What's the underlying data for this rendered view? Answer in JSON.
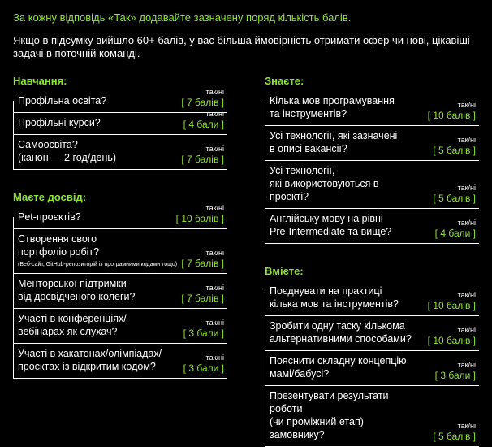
{
  "intro": {
    "line1": "За кожну відповідь «Так» додавайте зазначену поряд кількість балів.",
    "line2": "Якщо в підсумку вийшло 60+ балів, у вас більша ймовірність отримати офер чи нові, цікавіші задачі в поточній команді."
  },
  "yes_no": "так/ні",
  "left": {
    "education": {
      "title": "Навчання:",
      "items": [
        {
          "q": "Профільна освіта?",
          "pts": "[ 7 балів ]"
        },
        {
          "q": "Профільні курси?",
          "pts": "[ 4 бали ]"
        },
        {
          "q": "Самоосвіта?\n(канон — 2 год/день)",
          "pts": "[ 7 балів ]"
        }
      ]
    },
    "experience": {
      "title": "Маєте досвід:",
      "items": [
        {
          "q": "Pet-проєктів?",
          "pts": "[ 10 балів ]"
        },
        {
          "q": "Створення свого\nпортфоліо робіт?",
          "note": "(Веб-сайт, GitHub-репозиторій із програмними кодами тощо)",
          "pts": "[ 7 балів ]"
        },
        {
          "q": "Менторської підтримки\nвід досвідченого колеги?",
          "pts": "[ 7 балів ]"
        },
        {
          "q": "Участі в конференціях/\nвебінарах як слухач?",
          "pts": "[ 3 бали ]"
        },
        {
          "q": "Участі в хакатонах/олімпіадах/\nпроєктах із відкритим кодом?",
          "pts": "[ 3 бали ]"
        }
      ]
    }
  },
  "right": {
    "know": {
      "title": "Знаєте:",
      "items": [
        {
          "q": "Кілька мов програмування\nта інструментів?",
          "pts": "[ 10 балів ]"
        },
        {
          "q": "Усі технології, які зазначені\nв описі вакансії?",
          "pts": "[ 5 балів ]"
        },
        {
          "q": "Усі технології,\nякі використовуються в проєкті?",
          "pts": "[ 5 балів ]"
        },
        {
          "q": "Англійську мову на рівні\nPre-Intermediate та вище?",
          "pts": "[ 4 бали ]"
        }
      ]
    },
    "can": {
      "title": "Вмієте:",
      "items": [
        {
          "q": "Поєднувати на практиці\nкілька мов та інструментів?",
          "pts": "[ 10 балів ]"
        },
        {
          "q": "Зробити одну таску кількома\nальтернативними способами?",
          "pts": "[ 10 балів ]"
        },
        {
          "q": "Пояснити складну концепцію\nмамі/бабусі?",
          "pts": "[ 3 бали ]"
        },
        {
          "q": "Презентувати результати роботи\n(чи проміжний етап) замовнику?",
          "pts": "[ 5 балів ]"
        }
      ]
    }
  }
}
